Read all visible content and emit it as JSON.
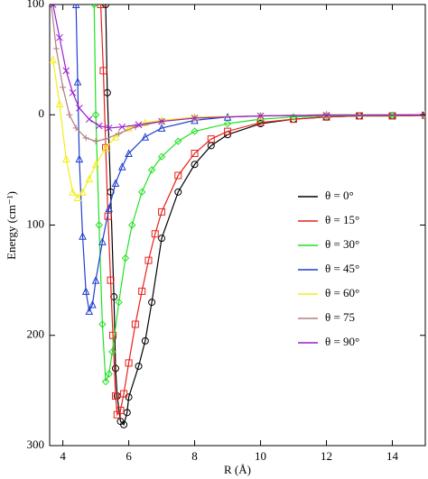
{
  "chart_data": {
    "type": "line",
    "x_label": "R (Å)",
    "y_label": "Energy (cm⁻¹)",
    "xlim": [
      3.6,
      15
    ],
    "ylim": [
      -300,
      100
    ],
    "xticks": [
      4,
      6,
      8,
      10,
      12,
      14
    ],
    "yticks": [
      100,
      0,
      {
        "value": -100,
        "label": "100"
      },
      {
        "value": -200,
        "label": "200"
      },
      {
        "value": -300,
        "label": "300"
      }
    ],
    "series": [
      {
        "name": "θ = 0°",
        "color": "#000000",
        "marker": "circle",
        "x": [
          5.3,
          5.35,
          5.45,
          5.55,
          5.6,
          5.65,
          5.75,
          5.85,
          5.95,
          6.0,
          6.3,
          6.5,
          6.7,
          7.0,
          7.5,
          8,
          8.5,
          9,
          10,
          11,
          12,
          13,
          14,
          15
        ],
        "values": [
          100,
          20,
          -70,
          -165,
          -230,
          -255,
          -278,
          -281,
          -270,
          -256,
          -228,
          -205,
          -170,
          -112,
          -70,
          -45,
          -28,
          -18,
          -8,
          -4,
          -2,
          -1,
          -1,
          -0.5
        ]
      },
      {
        "name": "θ = 15°",
        "color": "#e8201c",
        "marker": "square",
        "x": [
          5.15,
          5.23,
          5.3,
          5.37,
          5.45,
          5.52,
          5.6,
          5.65,
          5.75,
          5.85,
          6.0,
          6.2,
          6.4,
          6.6,
          6.8,
          7.0,
          7.5,
          8,
          8.5,
          9,
          10,
          11,
          12,
          13,
          14,
          15
        ],
        "values": [
          100,
          40,
          -30,
          -92,
          -150,
          -200,
          -255,
          -272,
          -268,
          -253,
          -225,
          -190,
          -160,
          -132,
          -108,
          -88,
          -55,
          -35,
          -22,
          -15,
          -7,
          -4,
          -2,
          -1,
          -1,
          -0.5
        ]
      },
      {
        "name": "θ = 30°",
        "color": "#22e022",
        "marker": "diamond",
        "x": [
          4.95,
          5.0,
          5.1,
          5.2,
          5.3,
          5.4,
          5.5,
          5.7,
          5.9,
          6.1,
          6.4,
          6.7,
          7.0,
          7.5,
          8,
          9,
          10,
          11,
          12,
          14,
          15
        ],
        "values": [
          100,
          0,
          -100,
          -190,
          -242,
          -235,
          -215,
          -170,
          -130,
          -100,
          -70,
          -50,
          -38,
          -24,
          -15,
          -8,
          -4,
          -2,
          -1,
          -0.5,
          0
        ]
      },
      {
        "name": "θ = 45°",
        "color": "#1f3fcf",
        "marker": "triangle",
        "x": [
          4.4,
          4.45,
          4.5,
          4.6,
          4.7,
          4.8,
          4.9,
          5.0,
          5.2,
          5.4,
          5.6,
          5.8,
          6.0,
          6.5,
          7,
          8,
          9,
          10,
          12,
          15
        ],
        "values": [
          100,
          30,
          -40,
          -110,
          -160,
          -178,
          -172,
          -150,
          -115,
          -85,
          -62,
          -47,
          -35,
          -20,
          -12,
          -5,
          -2,
          -1,
          0,
          0
        ]
      },
      {
        "name": "θ = 60°",
        "color": "#f2ee1a",
        "marker": "triangle",
        "x": [
          3.7,
          3.9,
          4.1,
          4.3,
          4.45,
          4.6,
          4.8,
          5.0,
          5.3,
          5.6,
          6,
          6.5,
          7,
          8,
          10,
          12,
          15
        ],
        "values": [
          50,
          10,
          -40,
          -70,
          -75,
          -70,
          -58,
          -45,
          -30,
          -20,
          -12,
          -7,
          -5,
          -2,
          -1,
          0,
          0
        ]
      },
      {
        "name": "θ = 75",
        "color": "#b08080",
        "marker": "plus",
        "x": [
          3.65,
          3.8,
          4.0,
          4.2,
          4.4,
          4.7,
          5.0,
          5.3,
          5.7,
          6.2,
          7,
          8,
          10,
          12,
          15
        ],
        "values": [
          100,
          60,
          25,
          0,
          -12,
          -21,
          -24,
          -22,
          -17,
          -11,
          -6,
          -3,
          -1,
          0,
          0
        ]
      },
      {
        "name": "θ = 90°",
        "color": "#9a1fd0",
        "marker": "cross",
        "x": [
          3.7,
          3.9,
          4.1,
          4.3,
          4.5,
          4.8,
          5.1,
          5.4,
          5.8,
          6.3,
          7,
          8,
          10,
          12,
          15
        ],
        "values": [
          100,
          70,
          40,
          20,
          6,
          -4,
          -10,
          -12,
          -11,
          -9,
          -6,
          -3,
          -1,
          -0.5,
          0
        ]
      }
    ]
  }
}
